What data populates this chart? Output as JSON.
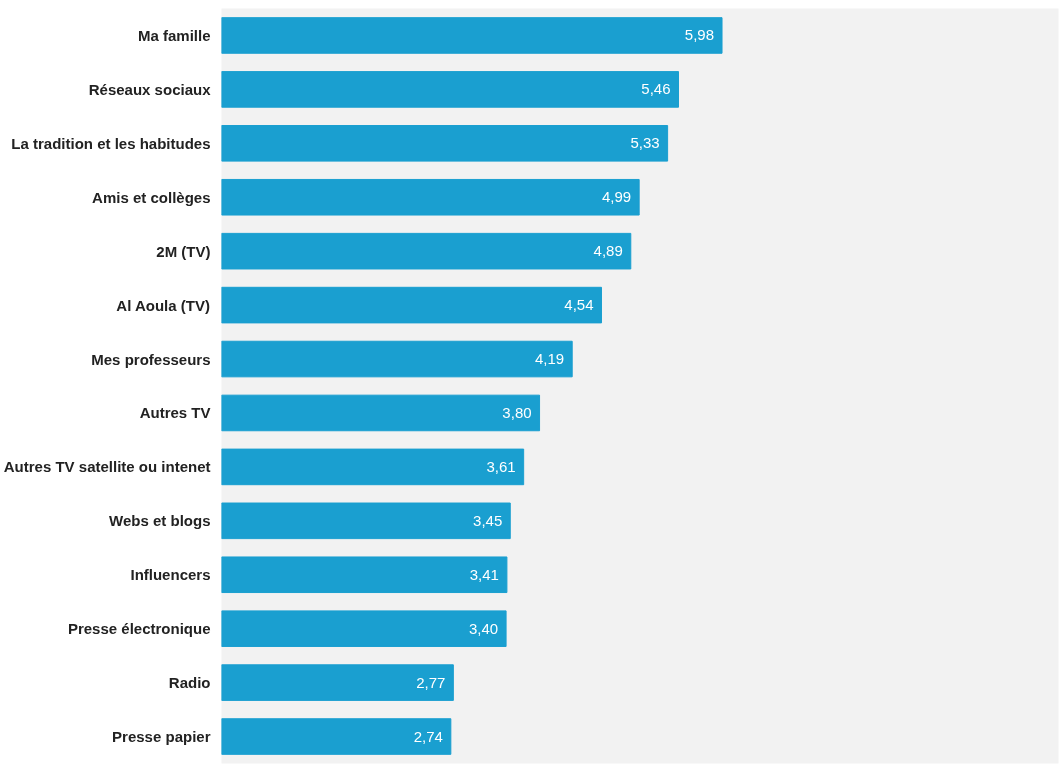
{
  "chart_data": {
    "type": "bar",
    "orientation": "horizontal",
    "categories": [
      "Ma famille",
      "Réseaux sociaux",
      "La tradition et les habitudes",
      "Amis et collèges",
      "2M (TV)",
      "Al Aoula (TV)",
      "Mes professeurs",
      "Autres TV",
      "Autres TV satellite ou intenet",
      "Webs et blogs",
      "Influencers",
      "Presse électronique",
      "Radio",
      "Presse papier"
    ],
    "values": [
      5.98,
      5.46,
      5.33,
      4.99,
      4.89,
      4.54,
      4.19,
      3.8,
      3.61,
      3.45,
      3.41,
      3.4,
      2.77,
      2.74
    ],
    "value_labels": [
      "5,98",
      "5,46",
      "5,33",
      "4,99",
      "4,89",
      "4,54",
      "4,19",
      "3,80",
      "3,61",
      "3,45",
      "3,41",
      "3,40",
      "2,77",
      "2,74"
    ],
    "color": "#1a9fd0",
    "xlim": [
      0,
      10
    ],
    "tick_labels": "y",
    "grid": false
  }
}
